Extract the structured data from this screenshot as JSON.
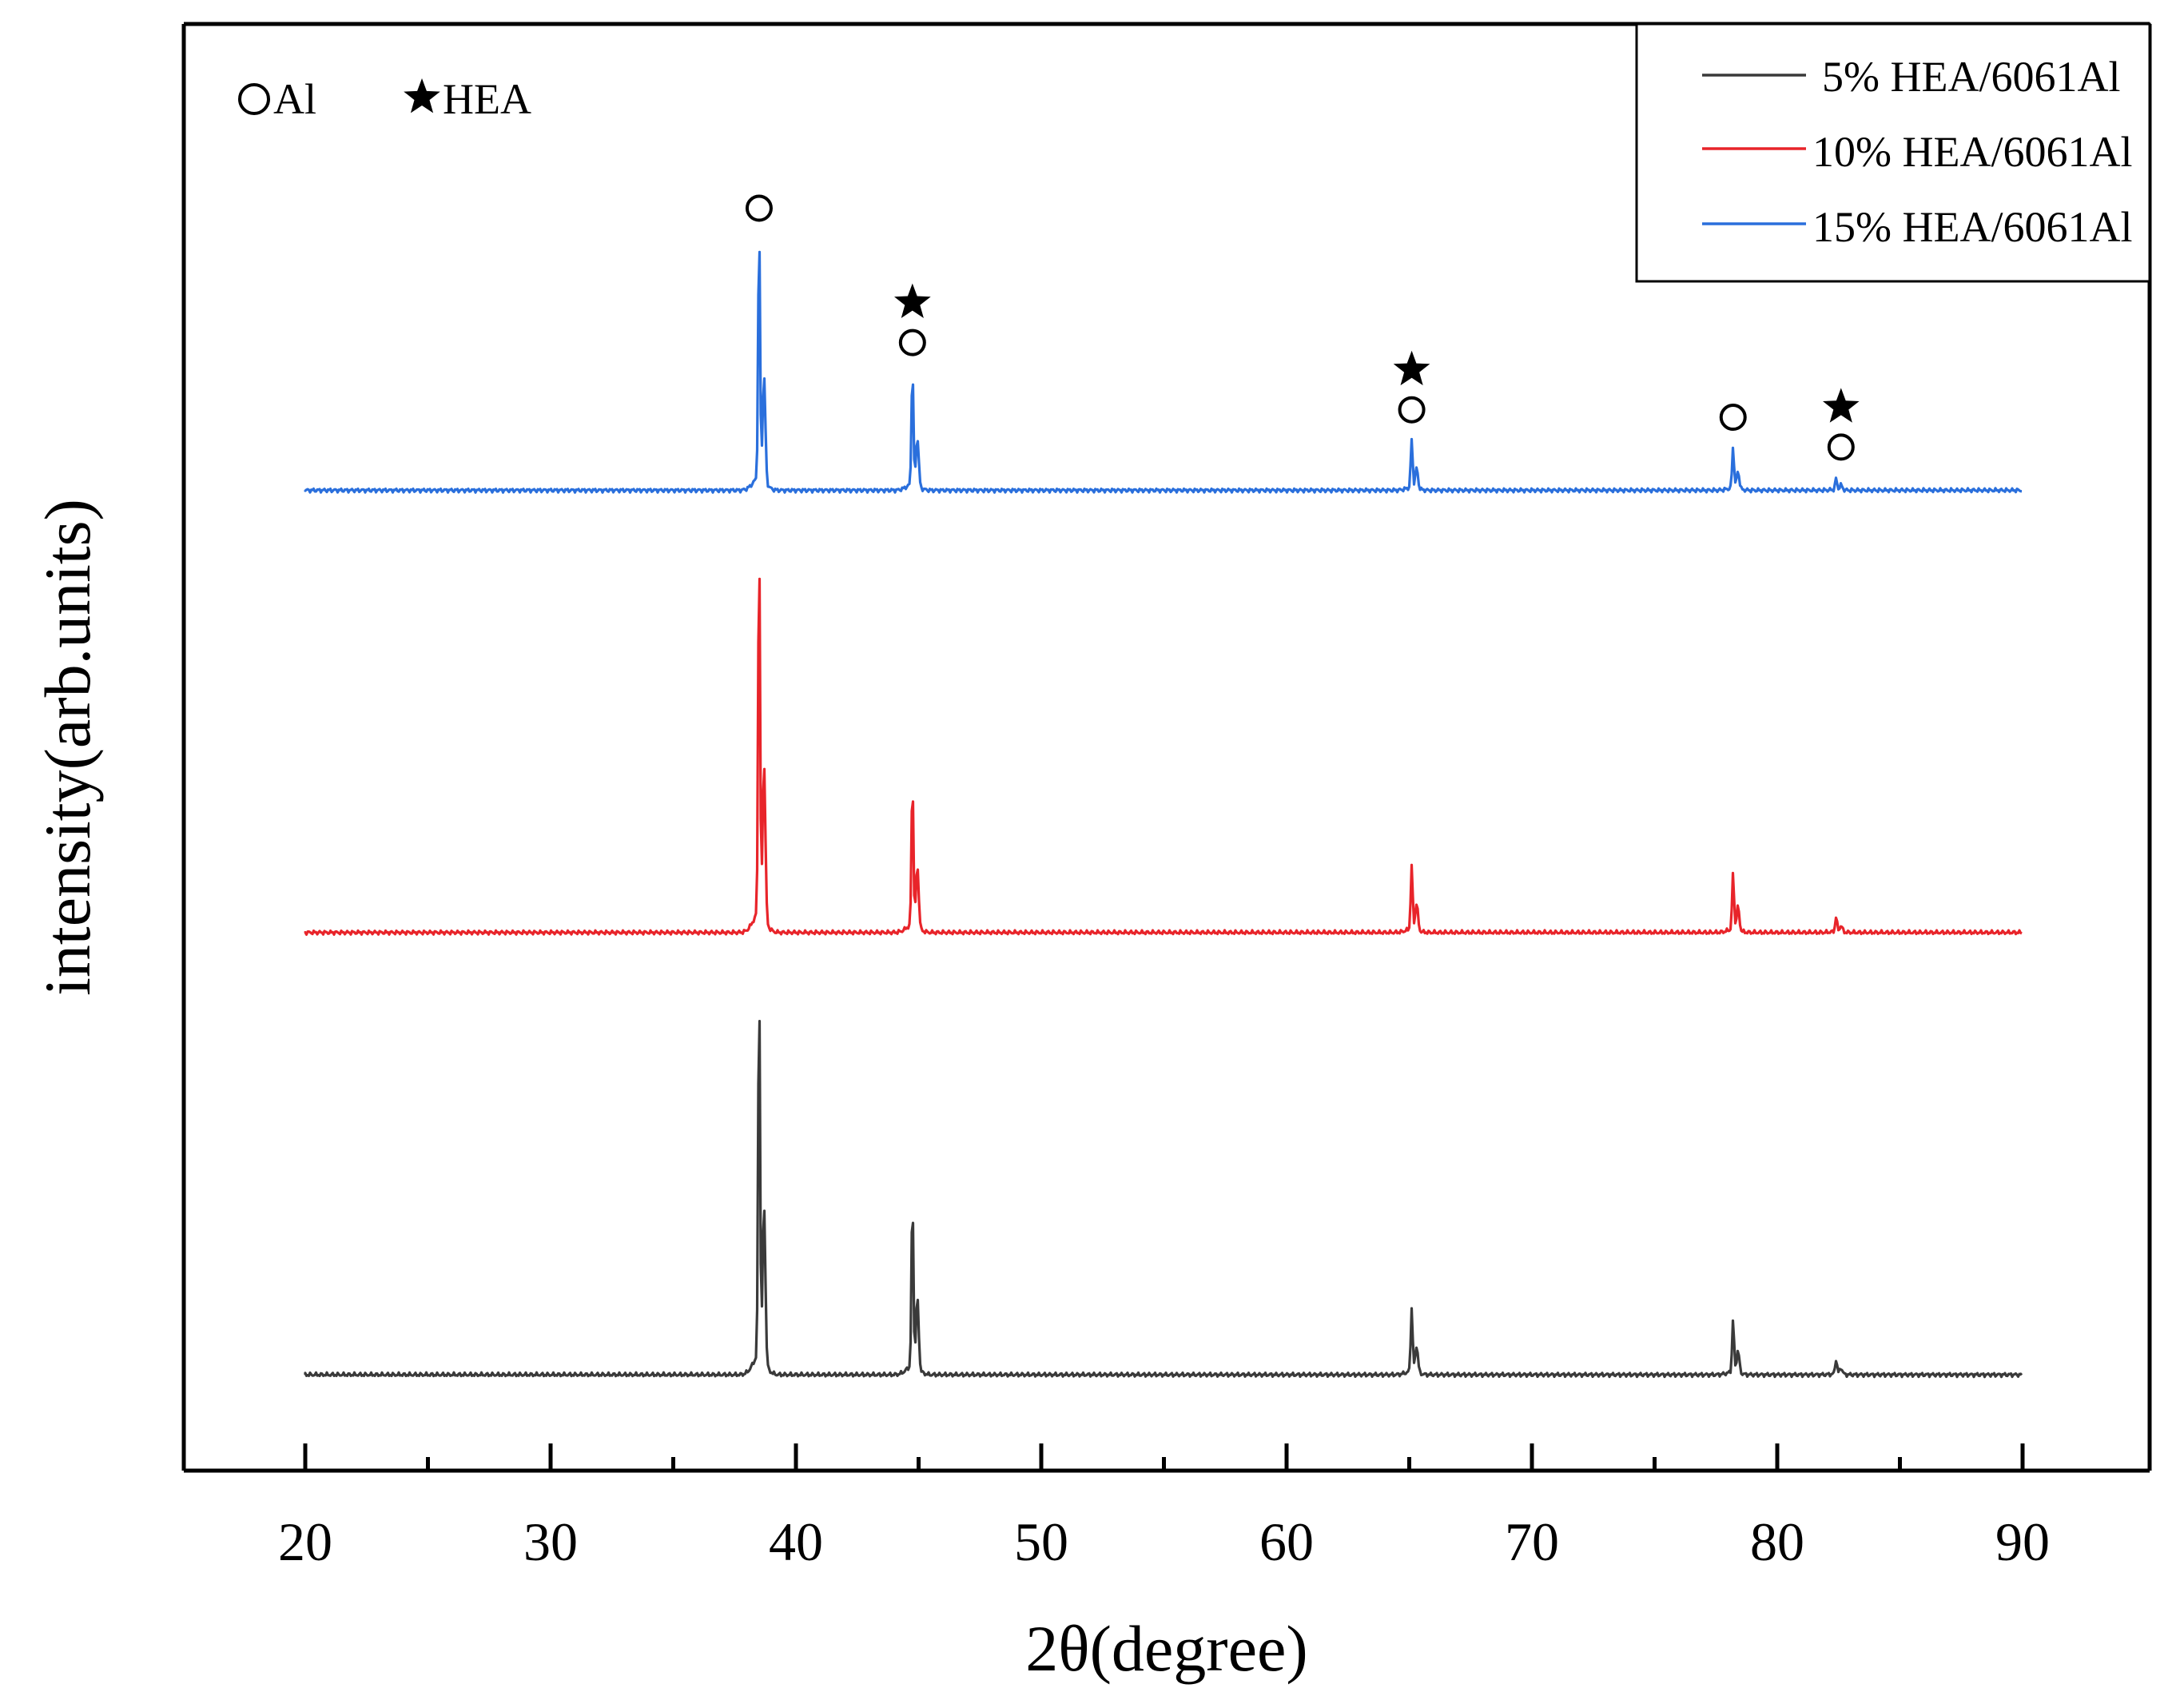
{
  "chart_data": {
    "type": "line",
    "title": "",
    "xlabel": "2θ(degree)",
    "ylabel": "intensity(arb.units)",
    "xlim": [
      15,
      95
    ],
    "x_ticks": [
      20,
      30,
      40,
      50,
      60,
      70,
      80,
      90
    ],
    "x_minor_ticks": [
      25,
      35,
      45,
      55,
      65,
      75,
      85
    ],
    "yticks_shown": false,
    "marker_key": [
      {
        "symbol": "circle",
        "label": "Al"
      },
      {
        "symbol": "star",
        "label": "HEA"
      }
    ],
    "legend": {
      "placement": "top-right"
    },
    "series": [
      {
        "name": "5% HEA/6061Al",
        "color": "#3a3a3a",
        "baseline": 0.0,
        "peaks": [
          {
            "x": 38.5,
            "height": 1.0
          },
          {
            "x": 44.75,
            "height": 0.45
          },
          {
            "x": 65.1,
            "height": 0.17
          },
          {
            "x": 78.2,
            "height": 0.14
          },
          {
            "x": 82.4,
            "height": 0.04
          }
        ]
      },
      {
        "name": "10% HEA/6061Al",
        "color": "#e8242a",
        "baseline": 1.1,
        "peaks": [
          {
            "x": 38.5,
            "height": 1.0
          },
          {
            "x": 44.75,
            "height": 0.39
          },
          {
            "x": 65.1,
            "height": 0.17
          },
          {
            "x": 78.2,
            "height": 0.15
          },
          {
            "x": 82.4,
            "height": 0.04
          }
        ]
      },
      {
        "name": "15% HEA/6061Al",
        "color": "#2a6fdc",
        "baseline": 2.2,
        "peaks": [
          {
            "x": 38.5,
            "height": 0.67
          },
          {
            "x": 44.75,
            "height": 0.31
          },
          {
            "x": 65.1,
            "height": 0.13
          },
          {
            "x": 78.2,
            "height": 0.11
          },
          {
            "x": 82.4,
            "height": 0.03
          }
        ]
      }
    ],
    "peak_annotations": [
      {
        "x": 38.5,
        "symbols": [
          "circle"
        ]
      },
      {
        "x": 44.75,
        "symbols": [
          "star",
          "circle"
        ]
      },
      {
        "x": 65.1,
        "symbols": [
          "star",
          "circle"
        ]
      },
      {
        "x": 78.2,
        "symbols": [
          "circle"
        ]
      },
      {
        "x": 82.6,
        "symbols": [
          "star",
          "circle"
        ]
      }
    ]
  }
}
